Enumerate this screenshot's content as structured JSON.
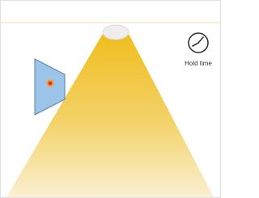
{
  "labels": {
    "hold_time": "Hold time"
  }
}
